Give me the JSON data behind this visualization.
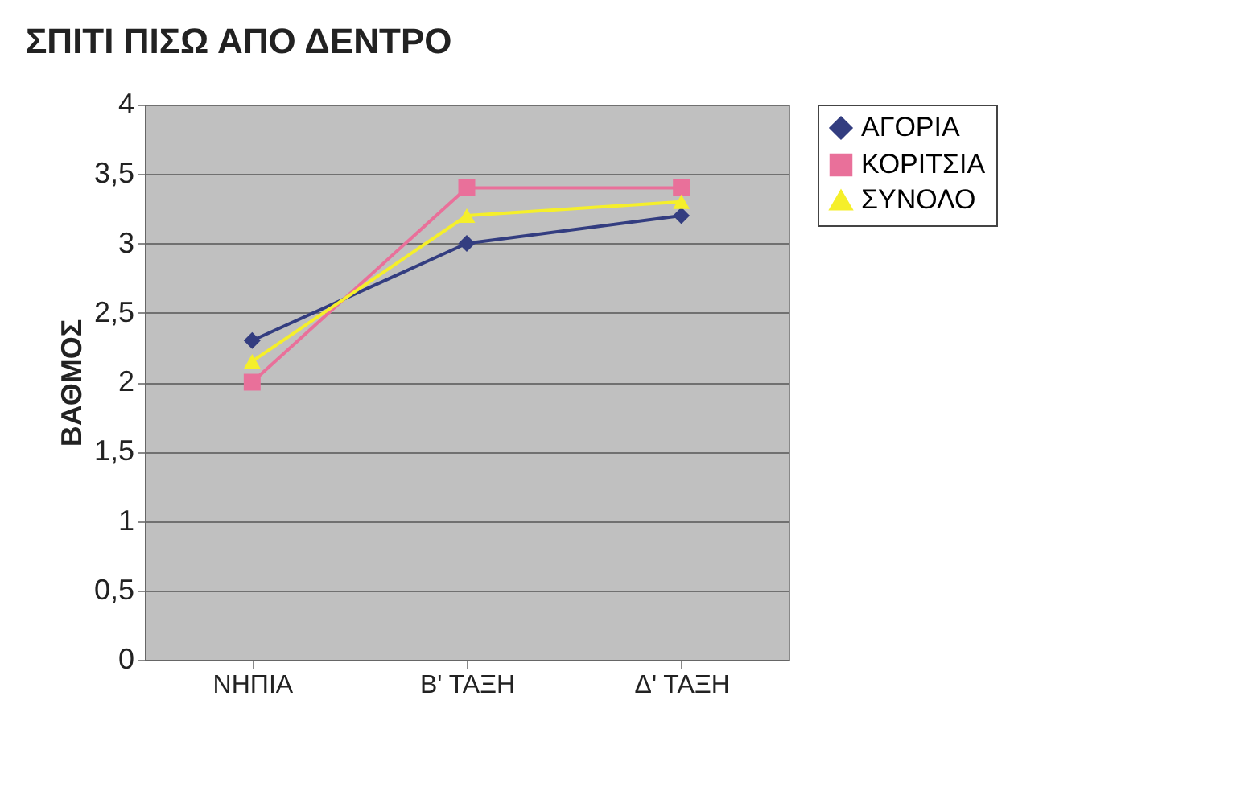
{
  "chart_data": {
    "type": "line",
    "title": "ΣΠΙΤΙ ΠΙΣΩ ΑΠΟ ΔΕΝΤΡΟ",
    "ylabel": "ΒΑΘΜΟΣ",
    "categories": [
      "ΝΗΠΙΑ",
      "Β' ΤΑΞΗ",
      "Δ' ΤΑΞΗ"
    ],
    "series": [
      {
        "name": "ΑΓΟΡΙΑ",
        "color": "#333d80",
        "marker": "diamond",
        "values": [
          2.3,
          3.0,
          3.2
        ]
      },
      {
        "name": "ΚΟΡΙΤΣΙΑ",
        "color": "#e9709a",
        "marker": "square",
        "values": [
          2.0,
          3.4,
          3.4
        ]
      },
      {
        "name": "ΣΥΝΟΛΟ",
        "color": "#f5ef2a",
        "marker": "triangle",
        "values": [
          2.15,
          3.2,
          3.3
        ]
      }
    ],
    "ylim": [
      0,
      4
    ],
    "yticks": [
      0,
      {
        "value": 0.5,
        "label": "0,5"
      },
      1,
      {
        "value": 1.5,
        "label": "1,5"
      },
      2,
      {
        "value": 2.5,
        "label": "2,5"
      },
      3,
      {
        "value": 3.5,
        "label": "3,5"
      },
      4
    ],
    "grid": "y",
    "legend": "right"
  }
}
